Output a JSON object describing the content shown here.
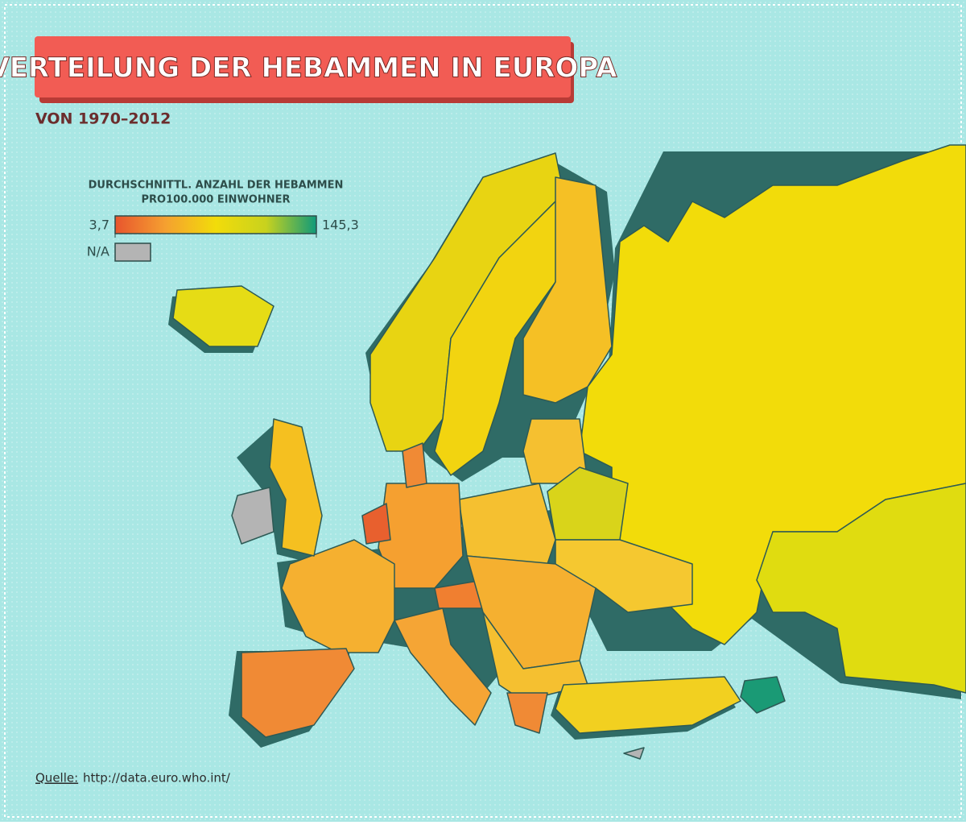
{
  "header": {
    "title": "VERTEILUNG DER HEBAMMEN IN EUROPA",
    "subtitle": "VON 1970–2012"
  },
  "legend": {
    "title": [
      "DURCHSCHNITTL. ANZAHL DER HEBAMMEN",
      "PRO100.000 EINWOHNER"
    ],
    "min": {
      "value": 3.7,
      "label": "3,7"
    },
    "max": {
      "value": 145.3,
      "label": "145,3"
    },
    "colors": [
      "#e8552e",
      "#f5a030",
      "#f2dc0a",
      "#c8d21e",
      "#0f9a7a"
    ],
    "na_label": "N/A",
    "na_color": "#b4b4b4"
  },
  "footer": {
    "source_label": "Quelle:",
    "source_url": "http://data.euro.who.int/"
  }
}
